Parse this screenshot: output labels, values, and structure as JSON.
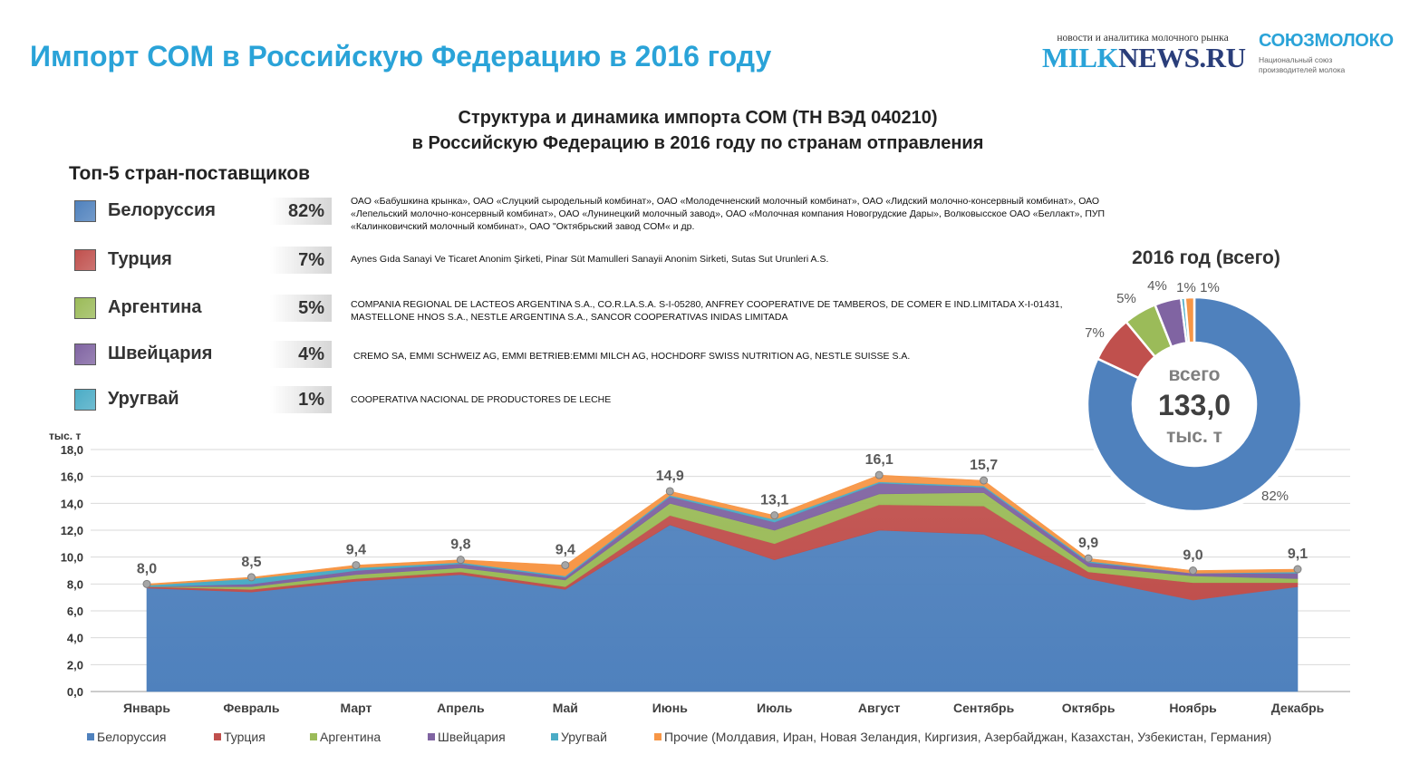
{
  "header": {
    "title": "Импорт СОМ в Российскую Федерацию в 2016 году",
    "logo_milknews_tagline": "новости и аналитика молочного рынка",
    "logo_milknews_name_a": "MILK",
    "logo_milknews_name_b": "NEWS.RU",
    "logo_soyuz_name": "СОЮЗМОЛОКО",
    "logo_soyuz_sub1": "Национальный союз",
    "logo_soyuz_sub2": "производителей молока"
  },
  "chart_title": {
    "line1": "Структура и динамика импорта СОМ (ТН ВЭД 040210)",
    "line2": "в Российскую Федерацию в 2016 году по странам отправления"
  },
  "top5": {
    "title": "Топ-5 стран-поставщиков",
    "items": [
      {
        "country": "Белоруссия",
        "share": "82%",
        "color": "#4f81bd",
        "companies": "ОАО «Бабушкина крынка», ОАО «Слуцкий сыродельный комбинат», ОАО «Молодечненский молочный комбинат», ОАО «Лидский молочно-консервный комбинат», ОАО «Лепельский молочно-консервный комбинат», ОАО «Лунинецкий молочный завод», ОАО «Молочная компания Новогрудские Дары», Волковысское ОАО «Беллакт», ПУП «Калинковичский молочный комбинат», ОАО \"Октябрьский завод СОМ« и др."
      },
      {
        "country": "Турция",
        "share": "7%",
        "color": "#c0504d",
        "companies": "Aynes Gıda Sanayi Ve Ticaret Anonim Şirketi, Pinar Süt Mamulleri Sanayii Anonim Sirketi, Sutas Sut Urunleri A.S."
      },
      {
        "country": "Аргентина",
        "share": "5%",
        "color": "#9bbb59",
        "companies": "COMPANIA REGIONAL DE LACTEOS ARGENTINA S.A., CO.R.LA.S.A. S-I-05280, ANFREY COOPERATIVE DE TAMBEROS, DE COMER E IND.LIMITADA X-I-01431, MASTELLONE HNOS S.A., NESTLE ARGENTINA S.A., SANCOR COOPERATIVAS INIDAS LIMITADA"
      },
      {
        "country": "Швейцария",
        "share": "4%",
        "color": "#8064a2",
        "companies": "CREMO SA, EMMI SCHWEIZ AG, EMMI BETRIEB:EMMI MILCH AG, HOCHDORF SWISS NUTRITION AG, NESTLE SUISSE S.A."
      },
      {
        "country": "Уругвай",
        "share": "1%",
        "color": "#4bacc6",
        "companies": "COOPERATIVA NACIONAL DE PRODUCTORES DE LECHE"
      }
    ]
  },
  "colors": {
    "Белоруссия": "#4f81bd",
    "Турция": "#c0504d",
    "Аргентина": "#9bbb59",
    "Швейцария": "#8064a2",
    "Уругвай": "#4bacc6",
    "Прочие": "#f79646"
  },
  "chart_data": [
    {
      "type": "area",
      "stacked": true,
      "ylabel": "тыс. т",
      "ylim": [
        0,
        18
      ],
      "ytick_step": 2,
      "ytick_labels": [
        "0,0",
        "2,0",
        "4,0",
        "6,0",
        "8,0",
        "10,0",
        "12,0",
        "14,0",
        "16,0",
        "18,0"
      ],
      "grid": true,
      "legend_position": "bottom",
      "categories": [
        "Январь",
        "Февраль",
        "Март",
        "Апрель",
        "Май",
        "Июнь",
        "Июль",
        "Август",
        "Сентябрь",
        "Октябрь",
        "Ноябрь",
        "Декабрь"
      ],
      "series": [
        {
          "name": "Белоруссия",
          "values": [
            7.7,
            7.4,
            8.2,
            8.7,
            7.6,
            12.4,
            9.8,
            12.0,
            11.7,
            8.4,
            6.8,
            7.8
          ]
        },
        {
          "name": "Турция",
          "values": [
            0.1,
            0.2,
            0.2,
            0.2,
            0.2,
            0.7,
            1.2,
            1.9,
            2.1,
            0.5,
            1.3,
            0.3
          ]
        },
        {
          "name": "Аргентина",
          "values": [
            0.0,
            0.2,
            0.3,
            0.3,
            0.5,
            0.9,
            1.0,
            0.8,
            1.0,
            0.4,
            0.5,
            0.3
          ]
        },
        {
          "name": "Швейцария",
          "values": [
            0.0,
            0.2,
            0.3,
            0.3,
            0.2,
            0.5,
            0.6,
            0.8,
            0.4,
            0.3,
            0.2,
            0.4
          ]
        },
        {
          "name": "Уругвай",
          "values": [
            0.1,
            0.4,
            0.2,
            0.1,
            0.1,
            0.1,
            0.2,
            0.1,
            0.1,
            0.1,
            0.0,
            0.1
          ]
        },
        {
          "name": "Прочие (Молдавия, Иран, Новая Зеландия, Киргизия, Азербайджан, Казахстан, Узбекистан, Германия)",
          "values": [
            0.1,
            0.1,
            0.2,
            0.2,
            0.8,
            0.3,
            0.3,
            0.5,
            0.4,
            0.2,
            0.2,
            0.2
          ]
        }
      ],
      "totals": [
        8.0,
        8.5,
        9.4,
        9.8,
        9.4,
        14.9,
        13.1,
        16.1,
        15.7,
        9.9,
        9.0,
        9.1
      ],
      "total_labels": [
        "8,0",
        "8,5",
        "9,4",
        "9,8",
        "9,4",
        "14,9",
        "13,1",
        "16,1",
        "15,7",
        "9,9",
        "9,0",
        "9,1"
      ]
    },
    {
      "type": "pie",
      "donut": true,
      "title": "2016 год (всего)",
      "center_label_top": "всего",
      "center_value": "133,0",
      "center_label_bottom": "тыс. т",
      "slices": [
        {
          "name": "Белоруссия",
          "value": 82,
          "label": "82%"
        },
        {
          "name": "Турция",
          "value": 7,
          "label": "7%"
        },
        {
          "name": "Аргентина",
          "value": 5,
          "label": "5%"
        },
        {
          "name": "Швейцария",
          "value": 4,
          "label": "4%"
        },
        {
          "name": "Уругвай",
          "value": 0.6,
          "label": "1%"
        },
        {
          "name": "Прочие",
          "value": 1.4,
          "label": "1%"
        }
      ]
    }
  ]
}
